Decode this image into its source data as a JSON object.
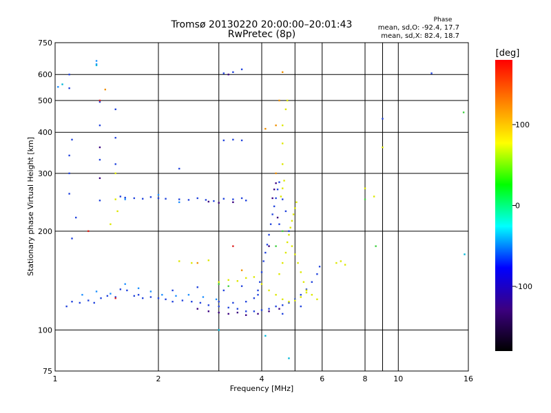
{
  "chart_data": {
    "type": "scatter",
    "title": "Tromsø 20130220 20:00:00–20:01:43",
    "subtitle": "RwPretec (8p)",
    "xlabel": "Frequency [MHz]",
    "ylabel": "Stationary phase Virtual Height [km]",
    "x_scale": "log",
    "y_scale": "log",
    "xlim": [
      1,
      16
    ],
    "ylim": [
      75,
      750
    ],
    "x_ticks": [
      1,
      2,
      4,
      6,
      8,
      10,
      16
    ],
    "y_ticks": [
      75,
      100,
      200,
      300,
      400,
      500,
      600,
      750
    ],
    "extra_vgrid": [
      3,
      5,
      9
    ],
    "grid": true,
    "phase_header": "Phase",
    "phase_stats": [
      "mean, sd,O: -92.4, 17.7",
      "mean, sd,X:  82.4, 18.7"
    ],
    "colorbar": {
      "label": "[deg]",
      "range": [
        -180,
        180
      ],
      "ticks": [
        100,
        0,
        -100
      ],
      "colors": [
        "#000000",
        "#3c0080",
        "#0000ff",
        "#00ffff",
        "#00ff00",
        "#ffff00",
        "#ff8000",
        "#ff0000"
      ]
    },
    "series": [
      {
        "mode": "O",
        "color": "#2244dd",
        "points": [
          [
            1.08,
            118
          ],
          [
            1.12,
            122
          ],
          [
            1.18,
            121
          ],
          [
            1.25,
            123
          ],
          [
            1.3,
            121
          ],
          [
            1.36,
            125
          ],
          [
            1.42,
            127
          ],
          [
            1.5,
            126
          ],
          [
            1.55,
            133
          ],
          [
            1.62,
            132
          ],
          [
            1.7,
            127
          ],
          [
            1.8,
            125
          ],
          [
            1.9,
            126
          ],
          [
            2.0,
            125
          ],
          [
            2.1,
            124
          ],
          [
            2.2,
            122
          ],
          [
            2.35,
            123
          ],
          [
            2.5,
            122
          ],
          [
            2.65,
            121
          ],
          [
            2.8,
            119
          ],
          [
            3.0,
            118
          ],
          [
            3.2,
            117
          ],
          [
            3.4,
            116
          ],
          [
            3.6,
            114
          ],
          [
            3.8,
            114
          ],
          [
            4.0,
            115
          ],
          [
            4.2,
            116
          ],
          [
            4.4,
            118
          ],
          [
            4.6,
            119
          ],
          [
            4.8,
            121
          ],
          [
            5.0,
            124
          ],
          [
            5.2,
            128
          ],
          [
            5.4,
            133
          ],
          [
            5.6,
            140
          ],
          [
            5.8,
            148
          ],
          [
            5.9,
            156
          ],
          [
            3.0,
            122
          ],
          [
            3.3,
            121
          ],
          [
            3.6,
            122
          ],
          [
            3.8,
            125
          ],
          [
            3.9,
            132
          ],
          [
            3.95,
            140
          ],
          [
            4.0,
            150
          ],
          [
            4.05,
            162
          ],
          [
            4.1,
            172
          ],
          [
            4.15,
            182
          ],
          [
            4.2,
            195
          ],
          [
            4.25,
            210
          ],
          [
            4.3,
            225
          ],
          [
            4.35,
            238
          ],
          [
            4.4,
            252
          ],
          [
            4.45,
            268
          ],
          [
            4.5,
            282
          ],
          [
            1.55,
            255
          ],
          [
            1.6,
            253
          ],
          [
            1.7,
            252
          ],
          [
            1.8,
            251
          ],
          [
            1.9,
            254
          ],
          [
            2.0,
            252
          ],
          [
            2.1,
            251
          ],
          [
            2.3,
            250
          ],
          [
            2.45,
            249
          ],
          [
            2.6,
            252
          ],
          [
            2.75,
            249
          ],
          [
            2.9,
            247
          ],
          [
            3.1,
            251
          ],
          [
            3.3,
            250
          ],
          [
            3.5,
            252
          ],
          [
            3.6,
            248
          ],
          [
            1.1,
            340
          ],
          [
            1.12,
            380
          ],
          [
            1.1,
            300
          ],
          [
            1.1,
            260
          ],
          [
            1.15,
            220
          ],
          [
            1.12,
            190
          ],
          [
            3.1,
            378
          ],
          [
            3.3,
            380
          ],
          [
            3.5,
            378
          ],
          [
            3.1,
            605
          ],
          [
            3.3,
            610
          ],
          [
            3.5,
            622
          ],
          [
            1.1,
            545
          ],
          [
            1.1,
            600
          ],
          [
            1.35,
            495
          ],
          [
            1.35,
            420
          ],
          [
            1.35,
            330
          ],
          [
            1.35,
            248
          ],
          [
            1.5,
            470
          ],
          [
            1.5,
            385
          ],
          [
            1.5,
            320
          ],
          [
            1.75,
            128
          ],
          [
            2.2,
            132
          ],
          [
            2.6,
            135
          ],
          [
            3.1,
            132
          ],
          [
            3.5,
            136
          ],
          [
            3.9,
            128
          ],
          [
            4.6,
            112
          ],
          [
            5.2,
            118
          ],
          [
            4.6,
            250
          ],
          [
            4.7,
            230
          ],
          [
            4.5,
            210
          ],
          [
            4.8,
            200
          ],
          [
            9.0,
            440
          ],
          [
            12.5,
            605
          ],
          [
            2.3,
            310
          ]
        ]
      },
      {
        "mode": "O-deep",
        "color": "#3a0080",
        "points": [
          [
            2.8,
            114
          ],
          [
            3.0,
            113
          ],
          [
            3.2,
            112
          ],
          [
            3.4,
            113
          ],
          [
            3.6,
            111
          ],
          [
            3.9,
            112
          ],
          [
            4.2,
            114
          ],
          [
            4.5,
            116
          ],
          [
            2.6,
            116
          ],
          [
            4.3,
            252
          ],
          [
            4.35,
            268
          ],
          [
            4.4,
            280
          ],
          [
            4.45,
            220
          ],
          [
            4.2,
            180
          ],
          [
            1.35,
            360
          ],
          [
            1.35,
            290
          ],
          [
            3.2,
            600
          ],
          [
            2.8,
            246
          ],
          [
            3.0,
            244
          ],
          [
            3.3,
            245
          ]
        ]
      },
      {
        "mode": "O-light",
        "color": "#1e90ff",
        "points": [
          [
            1.2,
            128
          ],
          [
            1.32,
            131
          ],
          [
            1.45,
            129
          ],
          [
            1.6,
            138
          ],
          [
            1.75,
            134
          ],
          [
            1.9,
            131
          ],
          [
            2.05,
            128
          ],
          [
            2.25,
            127
          ],
          [
            2.45,
            128
          ],
          [
            2.7,
            126
          ],
          [
            2.95,
            124
          ],
          [
            1.02,
            550
          ],
          [
            1.32,
            645
          ],
          [
            1.32,
            660
          ],
          [
            1.6,
            250
          ],
          [
            2.0,
            258
          ],
          [
            2.3,
            245
          ]
        ]
      },
      {
        "mode": "X",
        "color": "#dde800",
        "points": [
          [
            4.5,
            148
          ],
          [
            4.6,
            160
          ],
          [
            4.7,
            172
          ],
          [
            4.75,
            185
          ],
          [
            4.8,
            195
          ],
          [
            4.85,
            205
          ],
          [
            4.9,
            215
          ],
          [
            4.95,
            225
          ],
          [
            5.0,
            235
          ],
          [
            5.05,
            245
          ],
          [
            4.55,
            255
          ],
          [
            4.6,
            270
          ],
          [
            4.65,
            285
          ],
          [
            4.9,
            180
          ],
          [
            5.0,
            170
          ],
          [
            5.1,
            160
          ],
          [
            5.2,
            150
          ],
          [
            5.3,
            140
          ],
          [
            5.4,
            132
          ],
          [
            5.6,
            128
          ],
          [
            5.8,
            124
          ],
          [
            3.0,
            140
          ],
          [
            3.2,
            142
          ],
          [
            3.4,
            141
          ],
          [
            3.6,
            144
          ],
          [
            3.8,
            145
          ],
          [
            4.0,
            138
          ],
          [
            4.2,
            132
          ],
          [
            4.4,
            128
          ],
          [
            4.6,
            124
          ],
          [
            4.8,
            122
          ],
          [
            5.0,
            123
          ],
          [
            5.2,
            126
          ],
          [
            5.4,
            130
          ],
          [
            6.6,
            160
          ],
          [
            6.8,
            162
          ],
          [
            7.0,
            158
          ],
          [
            8.0,
            270
          ],
          [
            8.5,
            255
          ],
          [
            9.0,
            360
          ],
          [
            4.6,
            420
          ],
          [
            4.7,
            470
          ],
          [
            4.75,
            500
          ],
          [
            4.6,
            370
          ],
          [
            4.6,
            320
          ],
          [
            1.45,
            210
          ],
          [
            1.5,
            300
          ],
          [
            1.5,
            250
          ],
          [
            1.52,
            230
          ],
          [
            2.5,
            160
          ],
          [
            2.3,
            162
          ],
          [
            2.8,
            163
          ]
        ]
      },
      {
        "mode": "X-green",
        "color": "#40d040",
        "points": [
          [
            3.0,
            138
          ],
          [
            3.2,
            136
          ],
          [
            4.6,
            200
          ],
          [
            4.4,
            180
          ],
          [
            8.0,
            250
          ],
          [
            8.6,
            180
          ],
          [
            15.5,
            460
          ]
        ]
      },
      {
        "mode": "X-orange",
        "color": "#f09000",
        "points": [
          [
            4.1,
            410
          ],
          [
            4.4,
            420
          ],
          [
            4.5,
            500
          ],
          [
            4.6,
            610
          ],
          [
            4.4,
            300
          ],
          [
            1.4,
            540
          ],
          [
            2.6,
            160
          ],
          [
            3.5,
            152
          ],
          [
            1.25,
            200
          ]
        ]
      },
      {
        "mode": "noise-red",
        "color": "#dd2020",
        "points": [
          [
            1.35,
            500
          ],
          [
            1.25,
            200
          ],
          [
            1.5,
            125
          ],
          [
            3.3,
            180
          ]
        ]
      },
      {
        "mode": "noise-cyan",
        "color": "#00b8d8",
        "points": [
          [
            1.32,
            640
          ],
          [
            1.05,
            560
          ],
          [
            3.0,
            100
          ],
          [
            4.1,
            96
          ],
          [
            15.6,
            170
          ],
          [
            4.8,
            82
          ]
        ]
      }
    ]
  }
}
